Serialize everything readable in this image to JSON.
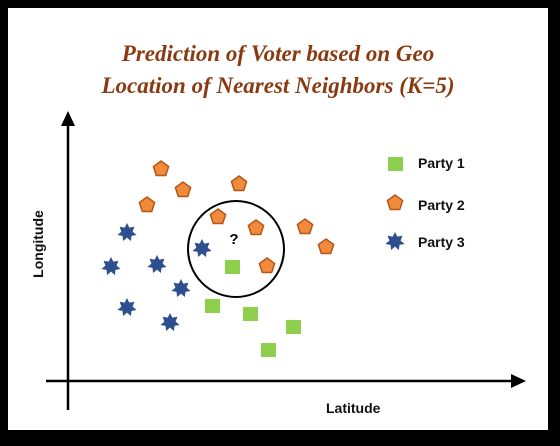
{
  "title": {
    "line1": "Prediction of Voter based on Geo",
    "line2": "Location of Nearest Neighbors (K=5)"
  },
  "axes": {
    "x_label": "Latitude",
    "y_label": "Longitude"
  },
  "query": {
    "label": "?"
  },
  "colors": {
    "party1": "#8ed04d",
    "party2": "#f28a3b",
    "party2_stroke": "#b4551a",
    "party3": "#2d4e8f",
    "title": "#8a3a10"
  },
  "legend": [
    {
      "label": "Party 1",
      "shape": "square"
    },
    {
      "label": "Party 2",
      "shape": "pentagon"
    },
    {
      "label": "Party 3",
      "shape": "star"
    }
  ]
}
